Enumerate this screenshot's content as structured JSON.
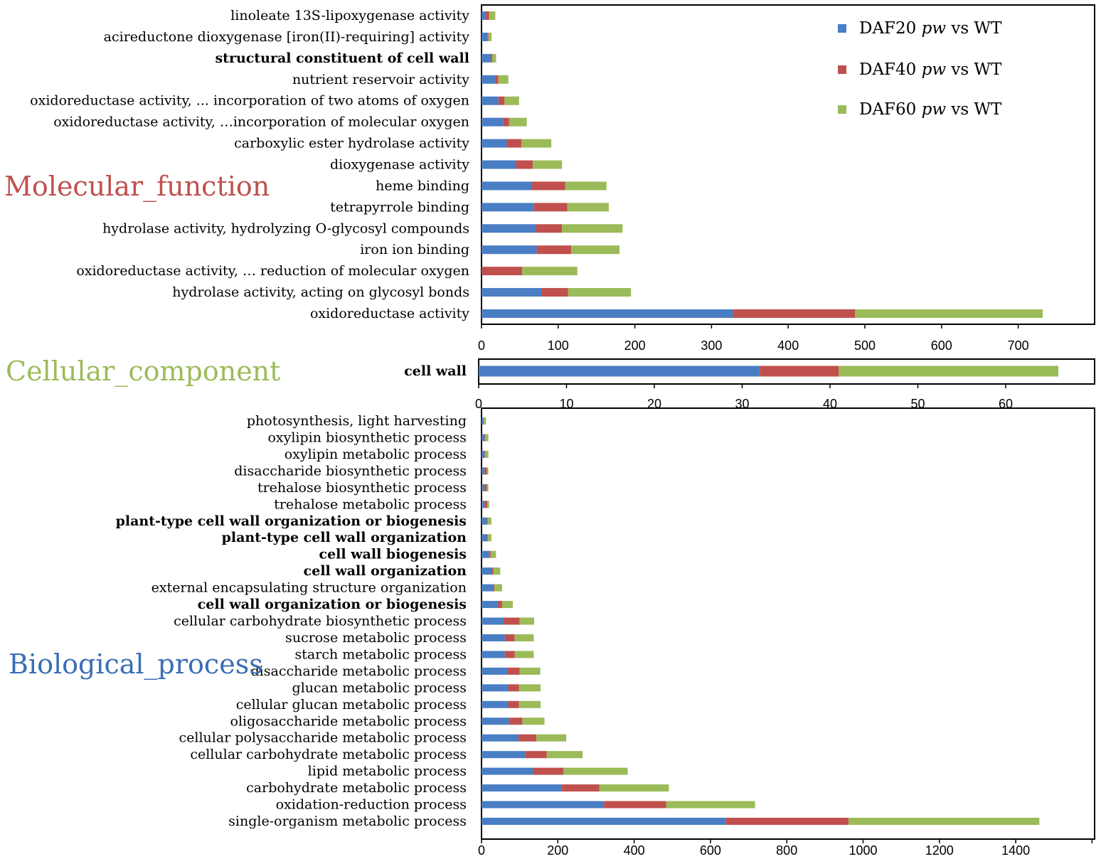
{
  "legend": {
    "entries": [
      {
        "prefix": "DAF20",
        "italic": "pw",
        "suffix": "vs  WT"
      },
      {
        "prefix": "DAF40",
        "italic": "pw",
        "suffix": "vs  WT"
      },
      {
        "prefix": "DAF60",
        "italic": "pw",
        "suffix": "vs  WT"
      }
    ]
  },
  "colors": {
    "daf20": "#4A7EC4",
    "daf40": "#C0504D",
    "daf60": "#9BBB59"
  },
  "chart_data": [
    {
      "type": "bar",
      "orientation": "horizontal",
      "stacked": true,
      "title": "Molecular_function",
      "title_color": "#C0504D",
      "series_names": [
        "DAF20 pw vs WT",
        "DAF40 pw vs WT",
        "DAF60 pw vs WT"
      ],
      "xlim": [
        0,
        800
      ],
      "xticks": [
        0,
        100,
        200,
        300,
        400,
        500,
        600,
        700
      ],
      "categories": [
        {
          "label": "linoleate 13S-lipoxygenase activity",
          "bold": false,
          "values": [
            5,
            5,
            8
          ]
        },
        {
          "label": "acireductone dioxygenase [iron(II)-requiring] activity",
          "bold": false,
          "values": [
            8,
            1,
            4
          ]
        },
        {
          "label": "structural constituent of cell wall",
          "bold": true,
          "values": [
            12,
            2,
            5
          ]
        },
        {
          "label": "nutrient reservoir activity",
          "bold": false,
          "values": [
            18,
            4,
            13
          ]
        },
        {
          "label": "oxidoreductase activity, ... incorporation of two atoms of oxygen",
          "bold": false,
          "values": [
            22,
            8,
            19
          ]
        },
        {
          "label": "oxidoreductase activity, …incorporation of molecular oxygen",
          "bold": false,
          "values": [
            28,
            8,
            23
          ]
        },
        {
          "label": "carboxylic ester hydrolase activity",
          "bold": false,
          "values": [
            33,
            19,
            39
          ]
        },
        {
          "label": "dioxygenase activity",
          "bold": false,
          "values": [
            45,
            22,
            38
          ]
        },
        {
          "label": "heme binding",
          "bold": false,
          "values": [
            65,
            44,
            54
          ]
        },
        {
          "label": "tetrapyrrole binding",
          "bold": false,
          "values": [
            68,
            44,
            54
          ]
        },
        {
          "label": "hydrolase activity, hydrolyzing O-glycosyl compounds",
          "bold": false,
          "values": [
            71,
            34,
            79
          ]
        },
        {
          "label": "iron ion binding",
          "bold": false,
          "values": [
            72,
            45,
            63
          ]
        },
        {
          "label": "oxidoreductase activity, … reduction of molecular oxygen",
          "bold": false,
          "values": [
            0,
            53,
            72
          ]
        },
        {
          "label": "hydrolase activity, acting on glycosyl bonds",
          "bold": false,
          "values": [
            78,
            35,
            82
          ]
        },
        {
          "label": "oxidoreductase activity",
          "bold": false,
          "values": [
            328,
            159,
            245
          ]
        }
      ]
    },
    {
      "type": "bar",
      "orientation": "horizontal",
      "stacked": true,
      "title": "Cellular_component",
      "title_color": "#9BBB59",
      "series_names": [
        "DAF20 pw vs WT",
        "DAF40 pw vs WT",
        "DAF60 pw vs WT"
      ],
      "xlim": [
        0,
        70
      ],
      "xticks": [
        0,
        10,
        20,
        30,
        40,
        50,
        60
      ],
      "categories": [
        {
          "label": "cell wall",
          "bold": true,
          "values": [
            32,
            9,
            25
          ]
        }
      ]
    },
    {
      "type": "bar",
      "orientation": "horizontal",
      "stacked": true,
      "title": "Biological_process",
      "title_color": "#3A6EB5",
      "series_names": [
        "DAF20 pw vs WT",
        "DAF40 pw vs WT",
        "DAF60 pw vs WT"
      ],
      "xlim": [
        0,
        1600
      ],
      "xticks": [
        0,
        200,
        400,
        600,
        800,
        1000,
        1200,
        1400
      ],
      "categories": [
        {
          "label": "photosynthesis, light harvesting",
          "bold": false,
          "values": [
            5,
            1,
            6
          ]
        },
        {
          "label": "oxylipin biosynthetic process",
          "bold": false,
          "values": [
            8,
            2,
            8
          ]
        },
        {
          "label": "oxylipin metabolic process",
          "bold": false,
          "values": [
            8,
            2,
            8
          ]
        },
        {
          "label": "disaccharide biosynthetic process",
          "bold": false,
          "values": [
            8,
            6,
            4
          ]
        },
        {
          "label": "trehalose biosynthetic process",
          "bold": false,
          "values": [
            8,
            6,
            4
          ]
        },
        {
          "label": "trehalose metabolic process",
          "bold": false,
          "values": [
            8,
            7,
            5
          ]
        },
        {
          "label": "plant-type cell wall organization or biogenesis",
          "bold": true,
          "values": [
            14,
            2,
            10
          ]
        },
        {
          "label": "plant-type cell wall organization",
          "bold": true,
          "values": [
            14,
            2,
            10
          ]
        },
        {
          "label": "cell wall biogenesis",
          "bold": true,
          "values": [
            20,
            4,
            14
          ]
        },
        {
          "label": "cell wall organization",
          "bold": true,
          "values": [
            27,
            4,
            18
          ]
        },
        {
          "label": "external encapsulating structure organization",
          "bold": false,
          "values": [
            30,
            4,
            20
          ]
        },
        {
          "label": "cell wall organization or biogenesis",
          "bold": true,
          "values": [
            42,
            12,
            28
          ]
        },
        {
          "label": "cellular carbohydrate biosynthetic process",
          "bold": false,
          "values": [
            58,
            42,
            38
          ]
        },
        {
          "label": "sucrose metabolic process",
          "bold": false,
          "values": [
            61,
            26,
            50
          ]
        },
        {
          "label": "starch metabolic process",
          "bold": false,
          "values": [
            61,
            26,
            50
          ]
        },
        {
          "label": "disaccharide metabolic process",
          "bold": false,
          "values": [
            68,
            32,
            54
          ]
        },
        {
          "label": "glucan metabolic process",
          "bold": false,
          "values": [
            70,
            28,
            57
          ]
        },
        {
          "label": "cellular glucan metabolic process",
          "bold": false,
          "values": [
            70,
            28,
            57
          ]
        },
        {
          "label": "oligosaccharide metabolic process",
          "bold": false,
          "values": [
            72,
            35,
            58
          ]
        },
        {
          "label": "cellular polysaccharide metabolic process",
          "bold": false,
          "values": [
            97,
            47,
            78
          ]
        },
        {
          "label": "cellular carbohydrate metabolic process",
          "bold": false,
          "values": [
            114,
            57,
            94
          ]
        },
        {
          "label": "lipid metabolic process",
          "bold": false,
          "values": [
            135,
            80,
            168
          ]
        },
        {
          "label": "carbohydrate metabolic process",
          "bold": false,
          "values": [
            211,
            98,
            182
          ]
        },
        {
          "label": "oxidation-reduction process",
          "bold": false,
          "values": [
            321,
            163,
            233
          ]
        },
        {
          "label": "single-organism metabolic process",
          "bold": false,
          "values": [
            640,
            322,
            500
          ]
        }
      ]
    }
  ]
}
